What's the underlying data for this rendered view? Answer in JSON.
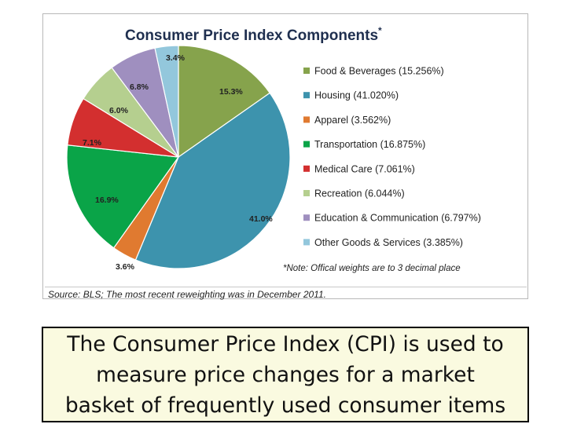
{
  "chart_data": {
    "type": "pie",
    "title": "Consumer Price Index Components",
    "title_marker": "*",
    "slices": [
      {
        "legend": "Food & Beverages (15.256%)",
        "value": 15.256,
        "label": "15.3%",
        "color": "#86a34c"
      },
      {
        "legend": "Housing (41.020%)",
        "value": 41.02,
        "label": "41.0%",
        "color": "#3d93ad"
      },
      {
        "legend": "Apparel (3.562%)",
        "value": 3.562,
        "label": "3.6%",
        "color": "#e07a30"
      },
      {
        "legend": "Transportation (16.875%)",
        "value": 16.875,
        "label": "16.9%",
        "color": "#0aa448"
      },
      {
        "legend": "Medical Care (7.061%)",
        "value": 7.061,
        "label": "7.1%",
        "color": "#d32f2f"
      },
      {
        "legend": "Recreation (6.044%)",
        "value": 6.044,
        "label": "6.0%",
        "color": "#b5cf8f"
      },
      {
        "legend": "Education & Communication (6.797%)",
        "value": 6.797,
        "label": "6.8%",
        "color": "#9f8fbf"
      },
      {
        "legend": "Other Goods & Services (3.385%)",
        "value": 3.385,
        "label": "3.4%",
        "color": "#93c7dc"
      }
    ],
    "note": "*Note: Offical weights are to 3 decimal place",
    "source": "Source: BLS; The most recent reweighting was in December 2011.",
    "legend_position": "right"
  },
  "caption": {
    "line1": "The Consumer Price Index (CPI) is used to",
    "line2": "measure price changes for a market",
    "line3": "basket of frequently used consumer items"
  }
}
